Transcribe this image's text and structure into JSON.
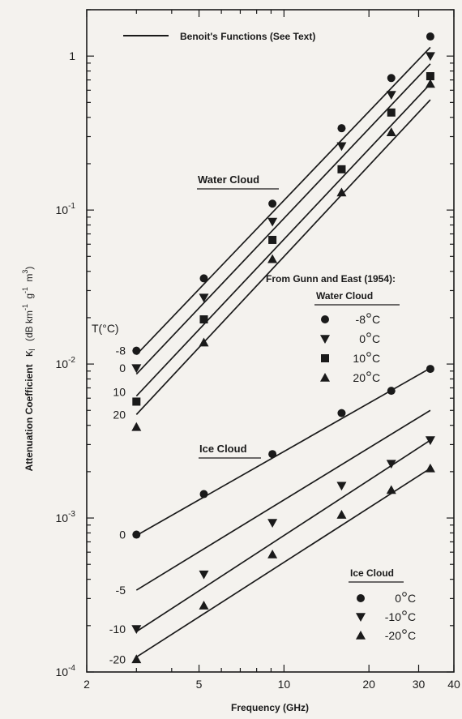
{
  "chart_data": {
    "type": "scatter",
    "xlabel": "Frequency (GHz)",
    "ylabel": "Attenuation Coefficient",
    "ylabel_symbol": "κ",
    "ylabel_subscript": "l",
    "ylabel_units_open": "(dB km",
    "ylabel_units_g": "g",
    "ylabel_units_m": "m",
    "ylabel_units_close": ")",
    "ylabel_exp_neg1": "-1",
    "ylabel_exp_3": "3",
    "x_scale": "log",
    "y_scale": "log",
    "xlim": [
      2,
      40
    ],
    "ylim": [
      0.0001,
      2
    ],
    "x_ticks": [
      {
        "value": 2,
        "label": "2"
      },
      {
        "value": 5,
        "label": "5"
      },
      {
        "value": 10,
        "label": "10"
      },
      {
        "value": 20,
        "label": "20"
      },
      {
        "value": 30,
        "label": "30"
      },
      {
        "value": 40,
        "label": "40"
      }
    ],
    "y_ticks": [
      {
        "value": 0.0001,
        "base": "10",
        "exp": "-4"
      },
      {
        "value": 0.001,
        "base": "10",
        "exp": "-3"
      },
      {
        "value": 0.01,
        "base": "10",
        "exp": "-2"
      },
      {
        "value": 0.1,
        "base": "10",
        "exp": "-1"
      },
      {
        "value": 1,
        "base": "1",
        "exp": ""
      }
    ],
    "legend_line_label": "Benoit's Functions (See Text)",
    "t_header": "T(°C)",
    "water_label": "Water Cloud",
    "ice_label": "Ice Cloud",
    "gunn_header": "From Gunn and East (1954):",
    "water_legend_title": "Water Cloud",
    "ice_legend_title": "Ice Cloud",
    "lines": [
      {
        "group": "water",
        "x": [
          3,
          33
        ],
        "y": [
          0.0115,
          1.14
        ]
      },
      {
        "group": "water",
        "x": [
          3,
          33
        ],
        "y": [
          0.0086,
          0.89
        ]
      },
      {
        "group": "water",
        "x": [
          3,
          33
        ],
        "y": [
          0.0062,
          0.66
        ]
      },
      {
        "group": "water",
        "x": [
          3,
          33
        ],
        "y": [
          0.0047,
          0.52
        ]
      },
      {
        "group": "ice",
        "x": [
          3,
          33
        ],
        "y": [
          0.00077,
          0.0094
        ]
      },
      {
        "group": "ice",
        "x": [
          3,
          33
        ],
        "y": [
          0.00034,
          0.005
        ]
      },
      {
        "group": "ice",
        "x": [
          3,
          33
        ],
        "y": [
          0.000183,
          0.0032
        ]
      },
      {
        "group": "ice",
        "x": [
          3,
          33
        ],
        "y": [
          0.000125,
          0.0021
        ]
      }
    ],
    "curve_temp_labels": [
      {
        "label": "-8",
        "y": 0.0122
      },
      {
        "label": "0",
        "y": 0.0094
      },
      {
        "label": "10",
        "y": 0.0066
      },
      {
        "label": "20",
        "y": 0.0047
      },
      {
        "label": "0",
        "y": 0.00078
      },
      {
        "label": "-5",
        "y": 0.00034
      },
      {
        "label": "-10",
        "y": 0.00019
      },
      {
        "label": "-20",
        "y": 0.000121
      }
    ],
    "series": [
      {
        "name": "-8°C",
        "label_main": "-8",
        "label_unit": "C",
        "group": "water",
        "marker": "circle",
        "x": [
          3,
          5.2,
          9.1,
          16,
          24,
          33
        ],
        "y": [
          0.0122,
          0.036,
          0.11,
          0.34,
          0.72,
          1.34
        ]
      },
      {
        "name": "0°C",
        "label_main": "0",
        "label_unit": "C",
        "group": "water",
        "marker": "triangle-down",
        "x": [
          3,
          5.2,
          9.1,
          16,
          24,
          33
        ],
        "y": [
          0.0094,
          0.027,
          0.084,
          0.26,
          0.56,
          1.0
        ]
      },
      {
        "name": "10°C",
        "label_main": "10",
        "label_unit": "C",
        "group": "water",
        "marker": "square",
        "x": [
          3,
          5.2,
          9.1,
          16,
          24,
          33
        ],
        "y": [
          0.0057,
          0.0195,
          0.064,
          0.184,
          0.43,
          0.74
        ]
      },
      {
        "name": "20°C",
        "label_main": "20",
        "label_unit": "C",
        "group": "water",
        "marker": "triangle-up",
        "x": [
          3,
          5.2,
          9.1,
          16,
          24,
          33
        ],
        "y": [
          0.0039,
          0.0138,
          0.048,
          0.13,
          0.32,
          0.66
        ]
      },
      {
        "name": "0°C",
        "label_main": "0",
        "label_unit": "C",
        "group": "ice",
        "marker": "circle",
        "x": [
          3,
          5.2,
          9.1,
          16,
          24,
          33
        ],
        "y": [
          0.00078,
          0.00143,
          0.0026,
          0.0048,
          0.0067,
          0.0093
        ]
      },
      {
        "name": "-10°C",
        "label_main": "-10",
        "label_unit": "C",
        "group": "ice",
        "marker": "triangle-down",
        "x": [
          3,
          5.2,
          9.1,
          16,
          24,
          33
        ],
        "y": [
          0.00019,
          0.00043,
          0.00093,
          0.00162,
          0.00225,
          0.0032
        ]
      },
      {
        "name": "-20°C",
        "label_main": "-20",
        "label_unit": "C",
        "group": "ice",
        "marker": "triangle-up",
        "x": [
          3,
          5.2,
          9.1,
          16,
          24,
          33
        ],
        "y": [
          0.000121,
          0.00027,
          0.00058,
          0.00105,
          0.00152,
          0.0021
        ]
      }
    ]
  }
}
